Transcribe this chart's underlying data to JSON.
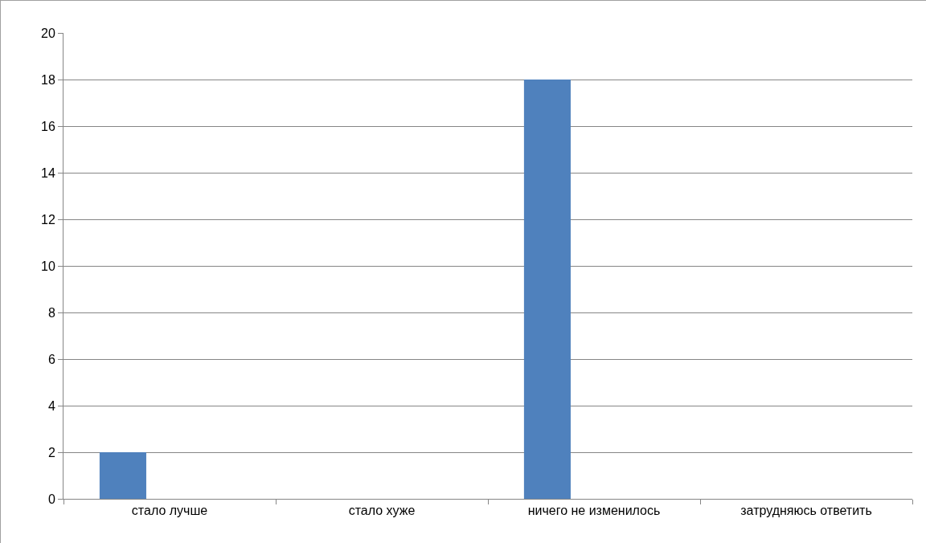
{
  "chart_data": {
    "type": "bar",
    "categories": [
      "стало лучше",
      "стало хуже",
      "ничего не изменилось",
      "затрудняюсь ответить"
    ],
    "values": [
      2,
      0,
      18,
      0
    ],
    "color": "#4f81bd",
    "ylim": [
      0,
      20
    ],
    "yticks": [
      0,
      2,
      4,
      6,
      8,
      10,
      12,
      14,
      16,
      18,
      20
    ],
    "grid": "y",
    "legend": false
  }
}
